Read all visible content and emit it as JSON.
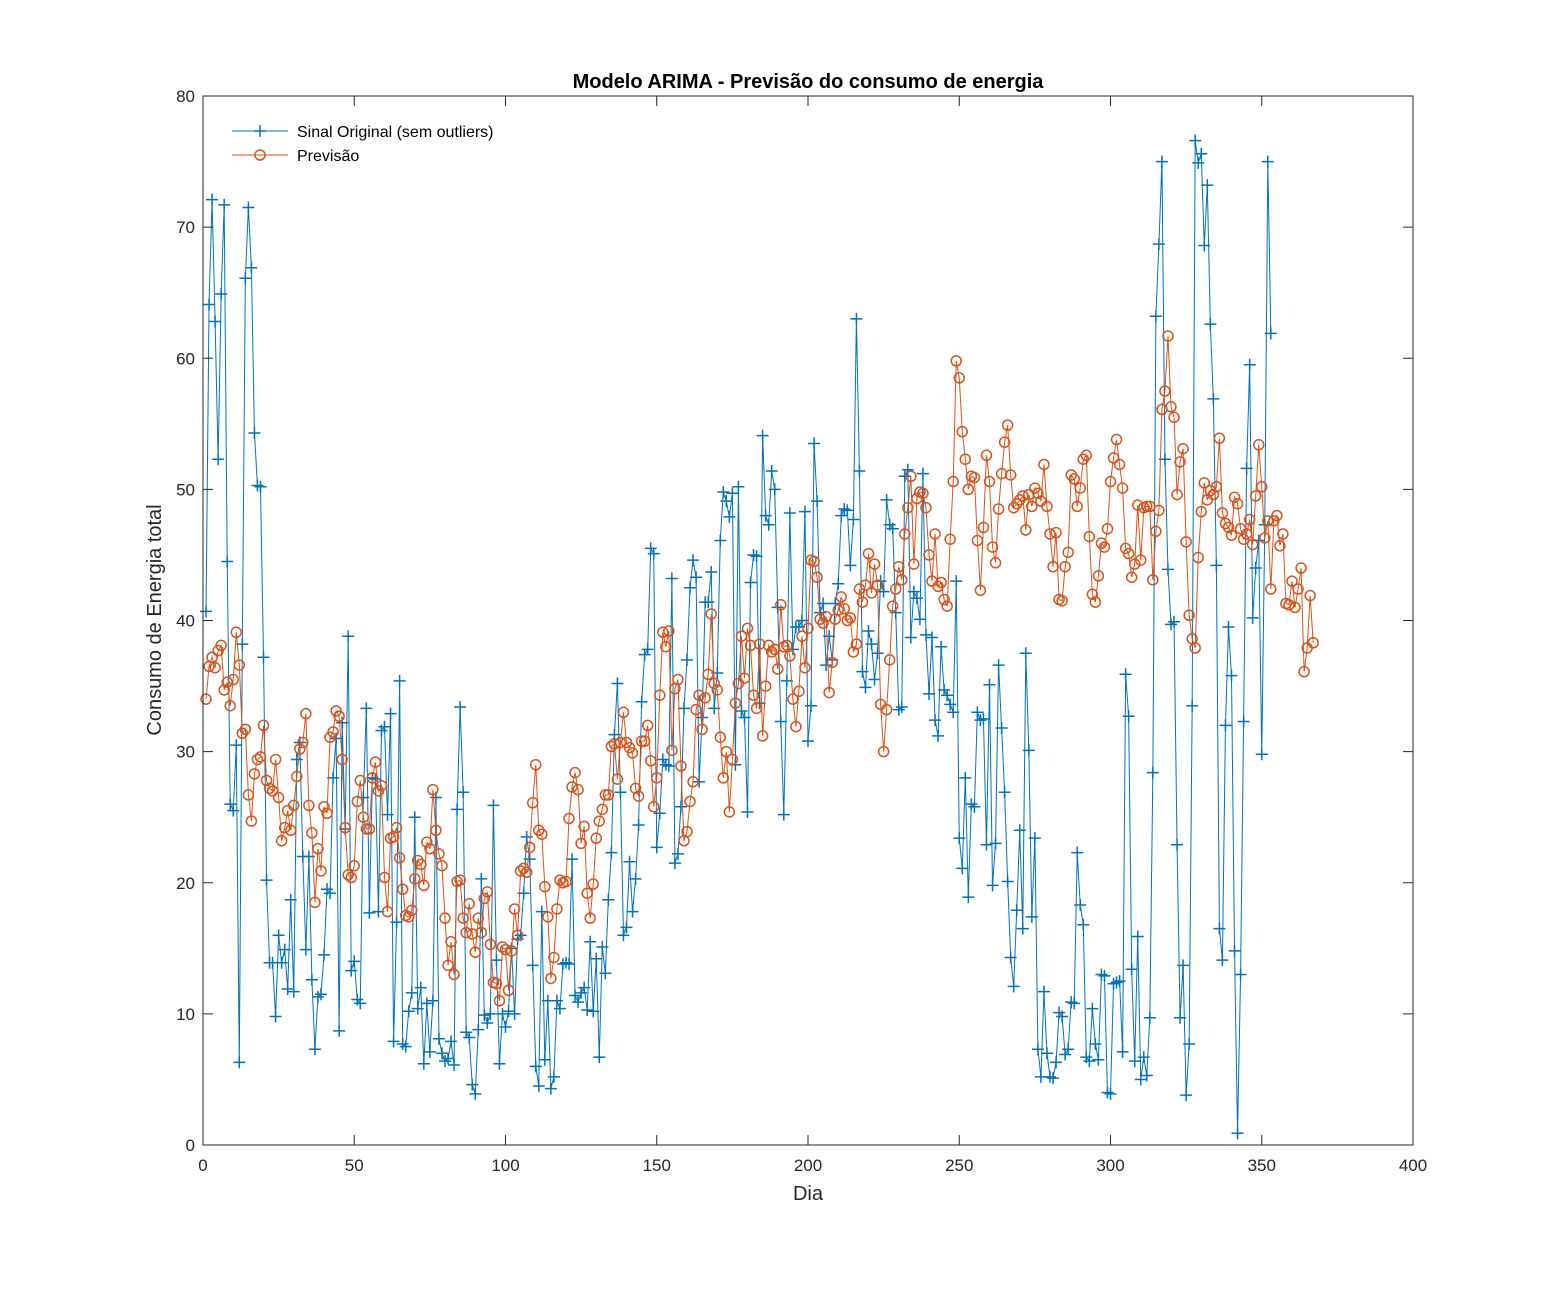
{
  "chart_data": {
    "type": "line",
    "title": "Modelo ARIMA - Previsão do consumo de energia",
    "xlabel": "Dia",
    "ylabel": "Consumo de Energia total",
    "xlim": [
      0,
      400
    ],
    "ylim": [
      0,
      80
    ],
    "xticks": [
      "0",
      "50",
      "100",
      "150",
      "200",
      "250",
      "300",
      "350",
      "400"
    ],
    "yticks": [
      "0",
      "10",
      "20",
      "30",
      "40",
      "50",
      "60",
      "70",
      "80"
    ],
    "grid": false,
    "legend_position": "top-left",
    "series": [
      {
        "name": "Sinal Original (sem outliers)",
        "color": "#0072BD",
        "marker": "plus",
        "values": [
          40.7,
          64.1,
          72.1,
          62.8,
          52.3,
          64.9,
          71.7,
          44.5,
          26.0,
          25.5,
          30.5,
          6.3,
          38.2,
          66.1,
          71.5,
          66.9,
          54.3,
          50.3,
          50.2,
          37.2,
          20.2,
          13.9,
          13.9,
          9.8,
          16.0,
          13.9,
          14.9,
          11.9,
          18.7,
          11.7,
          29.4,
          30.7,
          22.0,
          14.9,
          22.0,
          12.6,
          7.3,
          11.3,
          11.5,
          14.5,
          19.5,
          19.2,
          28.0,
          31.0,
          8.7,
          32.2,
          24.1,
          38.8,
          13.3,
          14.0,
          11.1,
          10.8,
          26.5,
          33.3,
          17.7,
          28.0,
          27.9,
          17.8,
          31.6,
          31.9,
          25.2,
          32.9,
          7.9,
          17.0,
          35.4,
          7.7,
          7.5,
          10.2,
          11.6,
          25.0,
          10.4,
          12.0,
          6.2,
          10.8,
          7.1,
          11.0,
          26.5,
          8.1,
          7.0,
          6.4,
          6.6,
          7.9,
          6.1,
          25.6,
          33.4,
          26.9,
          8.6,
          8.2,
          4.6,
          3.9,
          8.8,
          20.3,
          9.9,
          9.3,
          10.0,
          25.9,
          14.1,
          6.2,
          10.0,
          9.0,
          10.2,
          15.0,
          10.0,
          15.7,
          16.0,
          19.2,
          23.5,
          21.8,
          13.7,
          6.0,
          4.5,
          17.8,
          6.5,
          11.0,
          4.3,
          5.2,
          11.0,
          10.4,
          13.8,
          13.9,
          13.8,
          21.8,
          11.4,
          10.9,
          11.6,
          12.0,
          10.3,
          15.5,
          10.2,
          14.2,
          6.7,
          15.1,
          13.1,
          18.7,
          22.3,
          31.3,
          35.2,
          26.9,
          16.0,
          16.6,
          21.6,
          17.8,
          20.3,
          24.4,
          33.8,
          37.4,
          37.8,
          45.5,
          45.1,
          22.7,
          25.3,
          29.4,
          29.0,
          28.9,
          43.2,
          21.5,
          22.2,
          25.8,
          33.3,
          37.0,
          42.5,
          44.6,
          43.3,
          27.7,
          32.6,
          41.4,
          41.4,
          43.7,
          33.3,
          36.0,
          46.1,
          49.8,
          49.1,
          47.9,
          49.7,
          29.0,
          50.2,
          33.1,
          32.6,
          25.4,
          42.9,
          45.0,
          44.9,
          33.7,
          54.1,
          48.0,
          47.3,
          51.4,
          50.0,
          41.0,
          32.3,
          25.2,
          35.4,
          48.2,
          37.8,
          39.5,
          39.5,
          40.0,
          48.3,
          30.8,
          33.5,
          53.5,
          49.1,
          40.6,
          41.3,
          36.6,
          38.8,
          37.0,
          41.3,
          42.8,
          48.0,
          48.5,
          48.4,
          44.2,
          47.7,
          63.0,
          51.4,
          36.1,
          34.9,
          39.2,
          38.2,
          35.5,
          37.5,
          43.0,
          42.2,
          49.2,
          47.3,
          47.0,
          40.6,
          33.2,
          33.4,
          51.0,
          51.5,
          38.7,
          42.2,
          41.7,
          40.1,
          51.2,
          38.9,
          34.4,
          38.7,
          32.4,
          31.2,
          38.0,
          34.7,
          34.3,
          33.6,
          33.0,
          43.0,
          23.4,
          21.1,
          28.0,
          18.9,
          26.0,
          25.8,
          33.0,
          32.4,
          32.5,
          22.9,
          35.1,
          19.8,
          23.0,
          36.6,
          31.8,
          26.9,
          20.1,
          14.3,
          12.1,
          17.9,
          24.0,
          16.5,
          37.5,
          30.1,
          17.4,
          23.4,
          7.3,
          5.2,
          11.7,
          7.0,
          5.2,
          5.1,
          6.3,
          10.1,
          9.8,
          6.9,
          7.3,
          10.9,
          10.8,
          22.3,
          18.3,
          16.8,
          6.7,
          6.4,
          10.4,
          7.7,
          6.5,
          13.0,
          12.9,
          4.0,
          3.9,
          12.3,
          12.4,
          12.5,
          7.1,
          35.9,
          32.7,
          13.4,
          6.4,
          15.9,
          5.0,
          6.7,
          5.3,
          9.7,
          28.4,
          63.2,
          68.7,
          75.0,
          52.3,
          43.9,
          39.7,
          39.9,
          22.9,
          9.7,
          13.7,
          3.8,
          7.7,
          33.5,
          76.6,
          74.9,
          75.6,
          68.6,
          73.2,
          62.6,
          56.9,
          44.2,
          16.5,
          14.1,
          32.0,
          39.5,
          35.8,
          14.8,
          0.9,
          13.0,
          32.3,
          51.6,
          59.5,
          40.2,
          44.0,
          46.1,
          29.8,
          47.3,
          75.0,
          61.9
        ]
      },
      {
        "name": "Previsão",
        "color": "#D95319",
        "marker": "circle",
        "values": [
          34.0,
          36.5,
          37.2,
          36.4,
          37.7,
          38.1,
          34.7,
          35.3,
          33.5,
          35.5,
          39.1,
          36.6,
          31.4,
          31.7,
          26.7,
          24.7,
          28.3,
          29.4,
          29.6,
          32.0,
          27.8,
          27.2,
          27.0,
          29.4,
          26.5,
          23.2,
          24.2,
          25.5,
          24.0,
          25.9,
          28.1,
          30.2,
          30.7,
          32.9,
          25.9,
          23.8,
          18.5,
          22.6,
          20.9,
          25.8,
          25.3,
          31.1,
          31.5,
          33.1,
          32.7,
          29.4,
          24.2,
          20.6,
          20.4,
          21.3,
          26.2,
          27.8,
          25.0,
          24.1,
          24.1,
          28.0,
          29.2,
          27.0,
          27.4,
          20.4,
          17.8,
          23.4,
          23.5,
          24.2,
          21.9,
          19.5,
          17.5,
          17.4,
          17.9,
          20.3,
          21.7,
          21.4,
          19.8,
          23.1,
          22.6,
          27.1,
          24.0,
          22.2,
          21.3,
          17.3,
          13.7,
          15.5,
          13.0,
          20.1,
          20.2,
          17.3,
          16.2,
          18.4,
          16.1,
          14.7,
          17.3,
          16.2,
          18.8,
          19.3,
          15.3,
          12.4,
          12.3,
          11.0,
          15.1,
          14.9,
          11.8,
          14.8,
          18.0,
          16.0,
          20.9,
          21.1,
          20.8,
          22.7,
          26.1,
          29.0,
          24.0,
          23.7,
          19.7,
          17.4,
          12.7,
          14.3,
          18.0,
          20.2,
          20.0,
          20.1,
          24.9,
          27.3,
          28.4,
          27.1,
          23.0,
          24.3,
          19.2,
          17.3,
          19.9,
          23.4,
          24.7,
          25.6,
          26.7,
          26.7,
          30.4,
          30.6,
          27.9,
          30.7,
          33.0,
          30.7,
          30.3,
          29.9,
          27.2,
          26.6,
          30.8,
          30.8,
          32.0,
          29.3,
          25.8,
          28.0,
          34.3,
          39.1,
          38.0,
          39.2,
          30.1,
          34.8,
          35.5,
          28.9,
          23.2,
          23.9,
          26.2,
          27.7,
          33.2,
          34.3,
          31.7,
          34.1,
          35.9,
          40.5,
          35.2,
          34.7,
          31.1,
          28.0,
          30.0,
          25.4,
          29.4,
          33.7,
          35.2,
          38.8,
          35.6,
          39.4,
          38.1,
          34.3,
          33.3,
          38.2,
          31.2,
          35.0,
          38.1,
          37.6,
          37.8,
          36.3,
          41.2,
          38.0,
          38.1,
          37.3,
          34.0,
          31.9,
          34.6,
          38.8,
          36.4,
          39.4,
          44.6,
          44.5,
          43.3,
          40.1,
          39.8,
          40.3,
          34.5,
          36.8,
          40.1,
          40.8,
          41.8,
          40.9,
          40.0,
          40.2,
          37.6,
          38.2,
          42.4,
          41.4,
          42.7,
          45.1,
          42.1,
          44.3,
          42.7,
          33.6,
          30.0,
          33.2,
          37.0,
          41.1,
          42.4,
          44.1,
          43.1,
          46.6,
          48.6,
          51.0,
          44.3,
          49.3,
          49.8,
          49.7,
          48.6,
          45.0,
          43.0,
          46.6,
          42.6,
          42.9,
          41.6,
          41.1,
          46.2,
          50.6,
          59.8,
          58.5,
          54.4,
          52.3,
          50.0,
          51.0,
          50.9,
          46.1,
          42.3,
          47.1,
          52.6,
          50.6,
          45.6,
          44.4,
          48.5,
          51.2,
          53.6,
          54.9,
          51.1,
          48.6,
          48.9,
          49.2,
          49.5,
          46.9,
          49.6,
          48.7,
          50.1,
          49.7,
          49.1,
          51.9,
          48.7,
          46.6,
          44.1,
          46.7,
          41.6,
          41.5,
          44.1,
          45.2,
          51.1,
          50.8,
          48.7,
          50.1,
          52.3,
          52.6,
          46.4,
          42.0,
          41.4,
          43.4,
          45.9,
          45.6,
          47.0,
          50.6,
          52.4,
          53.8,
          51.9,
          50.1,
          45.5,
          45.1,
          43.3,
          44.3,
          48.8,
          44.6,
          48.6,
          48.7,
          48.7,
          43.1,
          46.8,
          48.4,
          56.1,
          57.5,
          61.7,
          56.3,
          55.5,
          49.6,
          52.1,
          53.1,
          46.0,
          40.4,
          38.6,
          37.9,
          44.8,
          48.3,
          50.5,
          49.2,
          49.9,
          49.6,
          50.2,
          53.9,
          48.2,
          47.4,
          47.1,
          46.5,
          49.4,
          48.9,
          47.0,
          46.2,
          46.6,
          47.7,
          45.8,
          49.5,
          53.4,
          50.2,
          46.3,
          47.6,
          42.4,
          47.6,
          48.0,
          45.7,
          46.6,
          41.3,
          41.2,
          43.0,
          41.0,
          42.4,
          44.0,
          36.1,
          37.9,
          41.9,
          38.3
        ]
      }
    ]
  }
}
